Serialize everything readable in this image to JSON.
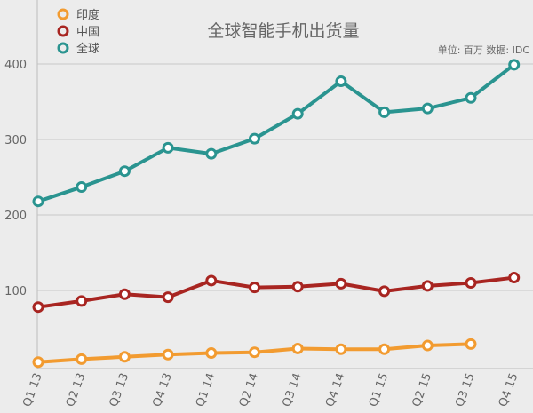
{
  "chart_data": {
    "type": "line",
    "title": "全球智能手机出货量",
    "note": "单位: 百万  数据: IDC",
    "categories": [
      "Q1 13",
      "Q2 13",
      "Q3 13",
      "Q4 13",
      "Q1 14",
      "Q2 14",
      "Q3 14",
      "Q4 14",
      "Q1 15",
      "Q2 15",
      "Q3 15",
      "Q4 15"
    ],
    "ylim": [
      0,
      400
    ],
    "yticks": [
      100,
      200,
      300,
      400
    ],
    "grid": true,
    "legend_position": "top-left",
    "series": [
      {
        "name": "印度",
        "color": "#f29b30",
        "values": [
          5,
          9,
          12,
          15,
          17,
          18,
          23,
          22,
          22,
          27,
          29,
          null
        ]
      },
      {
        "name": "中国",
        "color": "#a82521",
        "values": [
          78,
          86,
          95,
          91,
          113,
          104,
          105,
          109,
          99,
          106,
          110,
          117
        ]
      },
      {
        "name": "全球",
        "color": "#2a9490",
        "values": [
          218,
          237,
          258,
          289,
          281,
          301,
          334,
          377,
          336,
          341,
          355,
          399
        ]
      }
    ]
  }
}
